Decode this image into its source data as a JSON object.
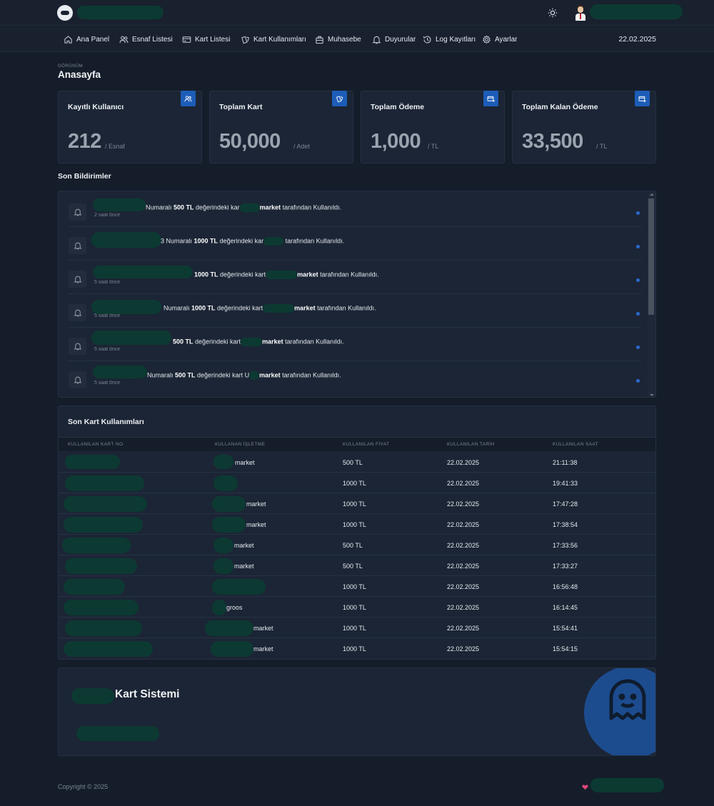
{
  "header": {
    "brand_icon": "ghost-logo-icon",
    "theme_icon": "sun-icon",
    "avatar_icon": "user-avatar-icon"
  },
  "nav": {
    "items": [
      {
        "label": "Ana Panel",
        "icon": "home-icon"
      },
      {
        "label": "Esnaf Listesi",
        "icon": "users-icon"
      },
      {
        "label": "Kart Listesi",
        "icon": "card-icon"
      },
      {
        "label": "Kart Kullanımları",
        "icon": "cards-icon"
      },
      {
        "label": "Muhasebe",
        "icon": "briefcase-icon"
      },
      {
        "label": "Duyurular",
        "icon": "bell-icon"
      },
      {
        "label": "Log Kayıtları",
        "icon": "history-icon"
      },
      {
        "label": "Ayarlar",
        "icon": "gear-icon"
      }
    ],
    "date": "22.02.2025"
  },
  "page": {
    "kicker": "GÖRÜNÜM",
    "title": "Anasayfa"
  },
  "stats": [
    {
      "title": "Kayıtlı Kullanıcı",
      "value": "212",
      "unit": "/ Esnaf",
      "icon": "users-icon"
    },
    {
      "title": "Toplam Kart",
      "value": "50,000",
      "unit": "/ Adet",
      "icon": "cards-icon"
    },
    {
      "title": "Toplam Ödeme",
      "value": "1,000",
      "unit": "/ TL",
      "icon": "card-export-icon"
    },
    {
      "title": "Toplam Kalan Ödeme",
      "value": "33,500",
      "unit": "/ TL",
      "icon": "card-add-icon"
    }
  ],
  "notifications": {
    "title": "Son Bildirimler",
    "items": [
      {
        "pre": "Numaralı ",
        "amount": "500 TL",
        "mid": " değerindeki kar",
        "biz": "market",
        "post": " tarafından Kullanıldı.",
        "time": "2 saat önce"
      },
      {
        "pre": "3 Numaralı ",
        "amount": "1000 TL",
        "mid": " değerindeki kar",
        "biz": "",
        "post": " tarafından Kullanıldı.",
        "time": ""
      },
      {
        "pre": "",
        "amount": "1000 TL",
        "mid": " değerindeki kart",
        "biz": "market",
        "post": " tarafından Kullanıldı.",
        "time": "5 saat önce"
      },
      {
        "pre": "Numaralı ",
        "amount": "1000 TL",
        "mid": " değerindeki kart",
        "biz": "market",
        "post": " tarafından Kullanıldı.",
        "time": "5 saat önce"
      },
      {
        "pre": "",
        "amount": "500 TL",
        "mid": " değerindeki kart",
        "biz": "market",
        "post": " tarafından Kullanıldı.",
        "time": "5 saat önce"
      },
      {
        "pre": "Numaralı ",
        "amount": "500 TL",
        "mid": " değerindeki kart U",
        "biz": "market",
        "post": " tarafından Kullanıldı.",
        "time": "5 saat önce"
      }
    ]
  },
  "usage_table": {
    "title": "Son Kart Kullanımları",
    "columns": [
      "KULLANILAN KART NO",
      "KULLANAN İŞLETME",
      "KULLANILAN FİYAT",
      "KULLANILAN TARİH",
      "KULLANILAN SAAT"
    ],
    "rows": [
      {
        "business": "market",
        "price": "500 TL",
        "date": "22.02.2025",
        "time": "21:11:38"
      },
      {
        "business": "",
        "price": "1000 TL",
        "date": "22.02.2025",
        "time": "19:41:33"
      },
      {
        "business": "market",
        "price": "1000 TL",
        "date": "22.02.2025",
        "time": "17:47:28"
      },
      {
        "business": "market",
        "price": "1000 TL",
        "date": "22.02.2025",
        "time": "17:38:54"
      },
      {
        "business": "market",
        "price": "500 TL",
        "date": "22.02.2025",
        "time": "17:33:56"
      },
      {
        "business": "market",
        "price": "500 TL",
        "date": "22.02.2025",
        "time": "17:33:27"
      },
      {
        "business": "",
        "price": "1000 TL",
        "date": "22.02.2025",
        "time": "16:56:48"
      },
      {
        "business": "groos",
        "price": "1000 TL",
        "date": "22.02.2025",
        "time": "16:14:45"
      },
      {
        "business": "market",
        "price": "1000 TL",
        "date": "22.02.2025",
        "time": "15:54:41"
      },
      {
        "business": "market",
        "price": "1000 TL",
        "date": "22.02.2025",
        "time": "15:54:15"
      }
    ]
  },
  "promo": {
    "title": "Kart Sistemi",
    "icon": "ghost-icon"
  },
  "footer": {
    "copyright": "Copyright © 2025",
    "icon": "heart-icon"
  }
}
